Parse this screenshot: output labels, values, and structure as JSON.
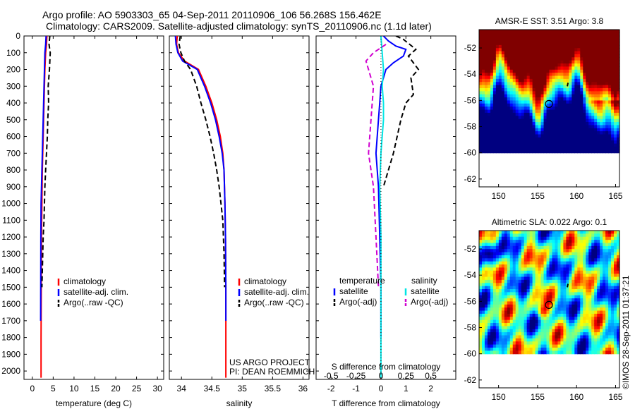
{
  "title": {
    "line1": "Argo profile: AO 5903303_65 04-Sep-2011 20110906_106 56.268S 156.462E",
    "line2": "Climatology: CARS2009. Satellite-adjusted climatology: synTS_20110906.nc (1.1d later)"
  },
  "watermark": "©IMOS 28-Sep-2011 01:37:21",
  "colors": {
    "climatology": "#ff0000",
    "satellite": "#0000ff",
    "argo": "#000000",
    "satellite_s": "#00e5e5",
    "argo_s": "#d000d0"
  },
  "chart_data": [
    {
      "id": "temperature",
      "type": "line",
      "xlabel": "temperature (deg C)",
      "ylabel": "",
      "xlim": [
        -2,
        31.5
      ],
      "ylim": [
        2050,
        0
      ],
      "xticks": [
        0,
        5,
        10,
        15,
        20,
        25,
        30
      ],
      "yticks": [
        0,
        100,
        200,
        300,
        400,
        500,
        600,
        700,
        800,
        900,
        1000,
        1100,
        1200,
        1300,
        1400,
        1500,
        1600,
        1700,
        1800,
        1900,
        2000
      ],
      "legend": {
        "position": "center-right",
        "entries": [
          "climatology",
          "satellite-adj. clim.",
          "Argo(..raw -QC)"
        ]
      },
      "series": [
        {
          "name": "climatology",
          "style": "solid",
          "x": [
            3.5,
            3.4,
            3.2,
            3.0,
            2.9,
            2.8,
            2.7,
            2.6,
            2.5,
            2.4,
            2.35,
            2.3,
            2.2,
            2.15,
            2.1,
            2.1
          ],
          "y": [
            0,
            50,
            100,
            200,
            300,
            400,
            500,
            600,
            700,
            800,
            900,
            1000,
            1200,
            1500,
            1800,
            2040
          ]
        },
        {
          "name": "satellite-adj. clim.",
          "style": "solid",
          "x": [
            3.3,
            3.2,
            3.0,
            2.9,
            2.8,
            2.7,
            2.6,
            2.5,
            2.4,
            2.3,
            2.2,
            2.1,
            2.05,
            2.0
          ],
          "y": [
            0,
            50,
            100,
            200,
            300,
            400,
            500,
            600,
            700,
            800,
            900,
            1000,
            1200,
            1700
          ]
        },
        {
          "name": "Argo(..raw -QC)",
          "style": "dashed",
          "x": [
            4.2,
            4.0,
            4.3,
            4.1,
            3.8,
            3.9,
            3.7,
            3.6,
            3.4,
            3.2,
            3.0,
            2.9,
            2.8,
            2.6,
            2.4,
            2.3
          ],
          "y": [
            0,
            50,
            100,
            200,
            300,
            400,
            500,
            600,
            700,
            800,
            900,
            1000,
            1100,
            1200,
            1400,
            1500
          ]
        }
      ]
    },
    {
      "id": "salinity",
      "type": "line",
      "xlabel": "salinity",
      "ylabel": "",
      "xlim": [
        33.8,
        36.1
      ],
      "ylim": [
        2050,
        0
      ],
      "xticks": [
        34,
        34.5,
        35,
        35.5,
        36
      ],
      "legend": {
        "position": "center-right",
        "entries": [
          "climatology",
          "satellite-adj. clim.",
          "Argo(..raw -QC)"
        ]
      },
      "annotations": [
        "US ARGO PROJECT",
        "PI: DEAN ROEMMICH"
      ],
      "series": [
        {
          "name": "climatology",
          "style": "solid",
          "x": [
            33.93,
            33.92,
            33.95,
            34.05,
            34.28,
            34.4,
            34.5,
            34.58,
            34.64,
            34.68,
            34.7,
            34.715,
            34.725,
            34.73,
            34.73,
            34.73
          ],
          "y": [
            0,
            50,
            100,
            150,
            200,
            300,
            400,
            500,
            600,
            700,
            800,
            1000,
            1200,
            1500,
            1800,
            2040
          ]
        },
        {
          "name": "satellite-adj. clim.",
          "style": "solid",
          "x": [
            33.9,
            33.91,
            33.94,
            34.02,
            34.26,
            34.38,
            34.48,
            34.56,
            34.62,
            34.67,
            34.7,
            34.715,
            34.725,
            34.73,
            34.73
          ],
          "y": [
            0,
            50,
            100,
            150,
            200,
            300,
            400,
            500,
            600,
            700,
            800,
            1000,
            1200,
            1500,
            1700
          ]
        },
        {
          "name": "Argo(..raw -QC)",
          "style": "dashed",
          "x": [
            33.98,
            33.96,
            33.99,
            34.05,
            34.15,
            34.25,
            34.32,
            34.4,
            34.47,
            34.53,
            34.58,
            34.62,
            34.65,
            34.68,
            34.7,
            34.71
          ],
          "y": [
            0,
            50,
            100,
            150,
            200,
            300,
            400,
            500,
            600,
            700,
            800,
            900,
            1000,
            1100,
            1300,
            1500
          ]
        }
      ]
    },
    {
      "id": "difference",
      "type": "line",
      "xlabel": "T difference from climatology",
      "xlabel_top": "S difference from climatology",
      "xlim": [
        -2.6,
        3.0
      ],
      "ylim": [
        2050,
        0
      ],
      "xticks": [
        -2,
        -1,
        0,
        1,
        2
      ],
      "xticks_s": [
        -0.5,
        -0.25,
        0,
        0.25,
        0.5
      ],
      "legend": {
        "position": "center",
        "temperature_heading": "temperature",
        "salinity_heading": "salinity",
        "entries": [
          "satellite",
          "Argo(-adj)",
          "satellite",
          "Argo(-adj)"
        ]
      },
      "series": [
        {
          "name": "satellite",
          "group": "temperature",
          "style": "solid",
          "x": [
            0.1,
            0.3,
            0.6,
            1.0,
            0.9,
            0.5,
            0.2,
            0.0,
            -0.05,
            -0.1,
            -0.2,
            -0.1,
            -0.05,
            0.0,
            0.0
          ],
          "y": [
            0,
            30,
            60,
            80,
            120,
            160,
            200,
            300,
            400,
            500,
            700,
            900,
            1200,
            1500,
            1800
          ]
        },
        {
          "name": "Argo(-adj)",
          "group": "temperature",
          "style": "dashed",
          "x": [
            0.6,
            0.9,
            1.4,
            1.1,
            1.5,
            1.2,
            1.3,
            1.0,
            0.8,
            0.5,
            0.1
          ],
          "y": [
            0,
            20,
            80,
            120,
            200,
            250,
            350,
            400,
            500,
            700,
            900
          ]
        },
        {
          "name": "satellite",
          "group": "salinity",
          "style": "solid",
          "x": [
            0.0,
            0.05,
            0.1,
            0.05,
            0.1,
            0.1,
            0.0,
            -0.05,
            0.0,
            0.0,
            0.0,
            0.0
          ],
          "y": [
            0,
            100,
            200,
            300,
            400,
            500,
            700,
            900,
            1200,
            1500,
            1800,
            2040
          ]
        },
        {
          "name": "Argo(-adj)",
          "group": "salinity",
          "style": "dashed",
          "x": [
            0.2,
            -0.3,
            -0.6,
            -0.5,
            -0.3,
            -0.4,
            -0.5,
            -0.3,
            -0.2,
            -0.1
          ],
          "y": [
            50,
            100,
            150,
            200,
            300,
            500,
            700,
            900,
            1200,
            1500
          ]
        }
      ]
    },
    {
      "id": "sst_map",
      "type": "heatmap",
      "title": "AMSR-E SST: 3.51 Argo: 3.8",
      "xlim": [
        147.5,
        165.5
      ],
      "ylim": [
        -62.6,
        -50.6
      ],
      "xticks": [
        150,
        155,
        160,
        165
      ],
      "yticks": [
        -52,
        -54,
        -56,
        -58,
        -60,
        -62
      ],
      "no_data_below": -60,
      "marker": {
        "lon": 156.46,
        "lat": -56.27
      }
    },
    {
      "id": "sla_map",
      "type": "heatmap",
      "title": "Altimetric SLA: 0.022 Argo: 0.1",
      "xlim": [
        147.5,
        165.5
      ],
      "ylim": [
        -62.6,
        -50.6
      ],
      "xticks": [
        150,
        155,
        160,
        165
      ],
      "yticks": [
        -52,
        -54,
        -56,
        -58,
        -60,
        -62
      ],
      "no_data_below": -60,
      "marker": {
        "lon": 156.46,
        "lat": -56.27
      }
    }
  ]
}
